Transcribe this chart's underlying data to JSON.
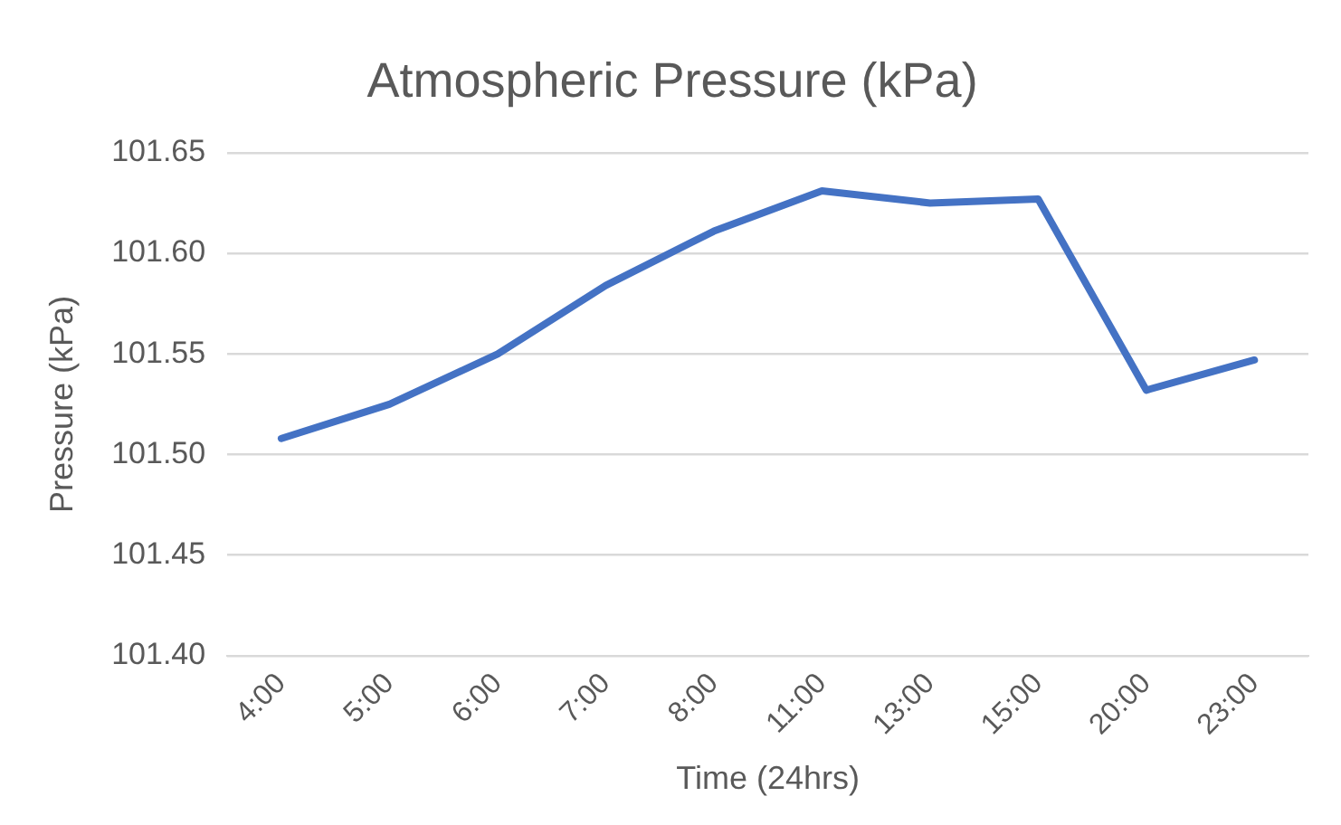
{
  "chart_data": {
    "type": "line",
    "title": "Atmospheric Pressure (kPa)",
    "xlabel": "Time (24hrs)",
    "ylabel": "Pressure (kPa)",
    "categories": [
      "4:00",
      "5:00",
      "6:00",
      "7:00",
      "8:00",
      "11:00",
      "13:00",
      "15:00",
      "20:00",
      "23:00"
    ],
    "series": [
      {
        "color": "#4472c4",
        "values": [
          101.508,
          101.525,
          101.55,
          101.584,
          101.611,
          101.631,
          101.625,
          101.627,
          101.532,
          101.547
        ]
      }
    ],
    "ylim": [
      101.4,
      101.65
    ],
    "yticks": [
      {
        "value": 101.4,
        "label": "101.40"
      },
      {
        "value": 101.45,
        "label": "101.45"
      },
      {
        "value": 101.5,
        "label": "101.50"
      },
      {
        "value": 101.55,
        "label": "101.55"
      },
      {
        "value": 101.6,
        "label": "101.60"
      },
      {
        "value": 101.65,
        "label": "101.65"
      }
    ],
    "grid": "y",
    "legend": false,
    "marker": "none",
    "line_style": "solid"
  }
}
